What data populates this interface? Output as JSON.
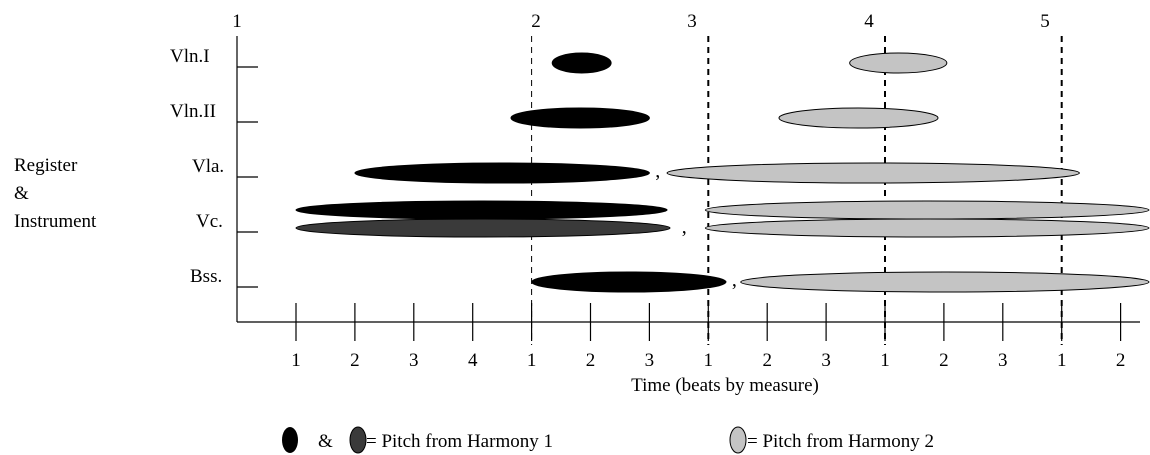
{
  "y_axis_label": [
    "Register",
    "&",
    "Instrument"
  ],
  "instruments": [
    "Vln.I",
    "Vln.II",
    "Vla.",
    "Vc.",
    "Bss."
  ],
  "measure_numbers": [
    "1",
    "2",
    "3",
    "4",
    "5"
  ],
  "beat_labels": [
    "1",
    "2",
    "3",
    "4",
    "1",
    "2",
    "3",
    "1",
    "2",
    "3",
    "1",
    "2",
    "3",
    "1",
    "2"
  ],
  "x_axis_label": "Time (beats by measure)",
  "legend": {
    "ampersand": "&",
    "harmony1_label": "= Pitch from Harmony 1",
    "harmony2_label": "= Pitch from Harmony 2"
  },
  "colors": {
    "harmony1": "#000000",
    "harmony1_alt": "#3a3a3a",
    "harmony2": "#c4c4c4",
    "axis": "#000000"
  },
  "comma": ",",
  "chart_data": {
    "type": "timeline",
    "measure_start_beats": [
      0,
      4,
      7,
      10,
      13
    ],
    "beats_shown": 15,
    "notes": [
      {
        "instrument": "Vln.I",
        "harmony": 1,
        "start": 4.35,
        "end": 5.35
      },
      {
        "instrument": "Vln.I",
        "harmony": 2,
        "start": 9.4,
        "end": 11.05
      },
      {
        "instrument": "Vln.II",
        "harmony": 1,
        "start": 3.65,
        "end": 6.0
      },
      {
        "instrument": "Vln.II",
        "harmony": 2,
        "start": 8.2,
        "end": 10.9
      },
      {
        "instrument": "Vla.",
        "harmony": 1,
        "start": 1.0,
        "end": 6.0
      },
      {
        "instrument": "Vla.",
        "harmony": 2,
        "start": 6.3,
        "end": 13.3
      },
      {
        "instrument": "Vc.",
        "harmony": 1,
        "start": 0.0,
        "end": 6.3,
        "layer": "upper"
      },
      {
        "instrument": "Vc.",
        "harmony": 1,
        "start": 0.0,
        "end": 6.35,
        "layer": "lower",
        "shade": "alt"
      },
      {
        "instrument": "Vc.",
        "harmony": 2,
        "start": 6.95,
        "end": 15.9,
        "layer": "upper"
      },
      {
        "instrument": "Vc.",
        "harmony": 2,
        "start": 6.95,
        "end": 15.9,
        "layer": "lower"
      },
      {
        "instrument": "Bss.",
        "harmony": 1,
        "start": 4.0,
        "end": 7.3
      },
      {
        "instrument": "Bss.",
        "harmony": 2,
        "start": 7.55,
        "end": 15.9
      }
    ],
    "commas_after": [
      {
        "instrument": "Vla.",
        "beat": 6.1
      },
      {
        "instrument": "Vc.",
        "beat": 6.55
      },
      {
        "instrument": "Bss.",
        "beat": 7.4
      }
    ]
  }
}
